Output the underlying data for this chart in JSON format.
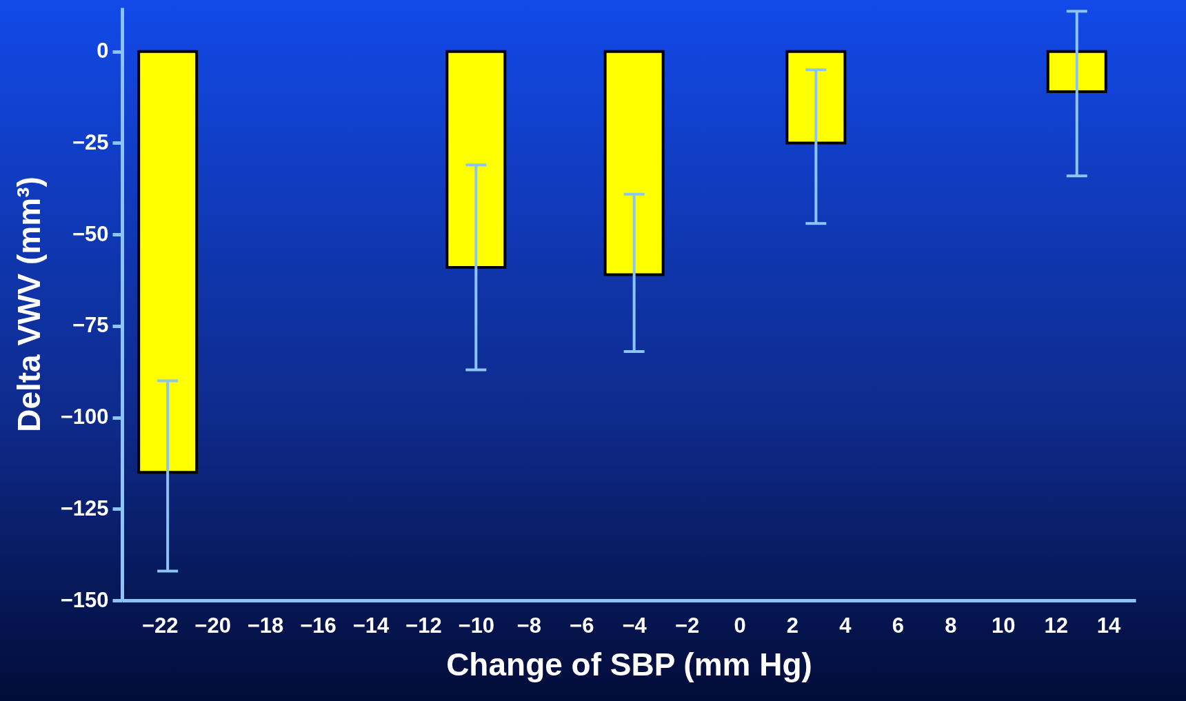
{
  "chart_data": {
    "type": "bar",
    "xlabel": "Change of SBP (mm Hg)",
    "ylabel": "Delta VWV (mm³)",
    "x": [
      -21.7,
      -10,
      -4,
      2.9,
      12.8
    ],
    "values": [
      -115,
      -59,
      -61,
      -25,
      -11
    ],
    "errors": [
      [
        -142,
        -90
      ],
      [
        -87,
        -31
      ],
      [
        -82,
        -39
      ],
      [
        -47,
        -5
      ],
      [
        -34,
        11
      ]
    ],
    "color": "#ffff00",
    "xlim": [
      -23.3,
      14.9
    ],
    "xticks": [
      -22,
      -20,
      -18,
      -16,
      -14,
      -12,
      -10,
      -8,
      -6,
      -4,
      -2,
      0,
      2,
      4,
      6,
      8,
      10,
      12,
      14
    ],
    "ylim": [
      -150,
      12
    ],
    "yticks": [
      0,
      -25,
      -50,
      -75,
      -100,
      -125,
      -150
    ],
    "grid": false
  }
}
